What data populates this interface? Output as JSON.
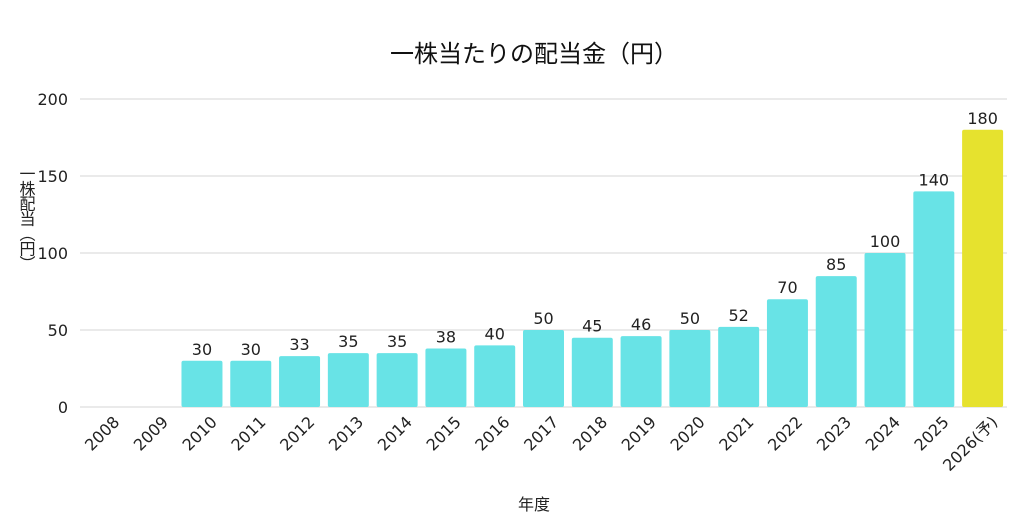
{
  "chart_data": {
    "type": "bar",
    "title": "一株当たりの配当金（円）",
    "xlabel": "年度",
    "ylabel": "一株配当（円）",
    "ylim": [
      0,
      200
    ],
    "yticks": [
      0,
      50,
      100,
      150,
      200
    ],
    "grid": true,
    "categories": [
      "2008",
      "2009",
      "2010",
      "2011",
      "2012",
      "2013",
      "2014",
      "2015",
      "2016",
      "2017",
      "2018",
      "2019",
      "2020",
      "2021",
      "2022",
      "2023",
      "2024",
      "2025",
      "2026(予)"
    ],
    "values": [
      null,
      null,
      30,
      30,
      33,
      35,
      35,
      38,
      40,
      50,
      45,
      46,
      50,
      52,
      70,
      85,
      100,
      140,
      180
    ],
    "colors": {
      "actual": "#68e3e6",
      "forecast": "#e6e22e"
    },
    "forecast_category": "2026(予)"
  }
}
